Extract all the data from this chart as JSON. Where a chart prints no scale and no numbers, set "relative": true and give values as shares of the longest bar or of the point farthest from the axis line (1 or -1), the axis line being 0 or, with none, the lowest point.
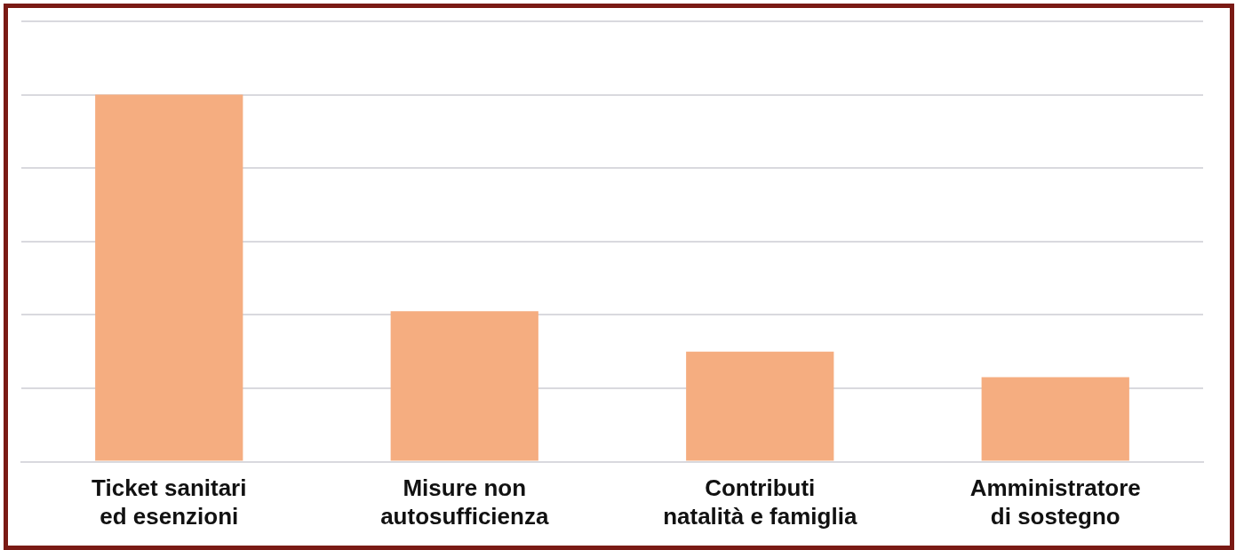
{
  "chart_data": {
    "type": "bar",
    "relative": true,
    "grid": "y",
    "categories": [
      "Ticket sanitari ed esenzioni",
      "Misure non autosufficienza",
      "Contributi natalità e famiglia",
      "Amministratore di sostegno"
    ],
    "values": [
      1,
      0.41,
      0.3,
      0.23
    ],
    "color": "#f5ad80"
  }
}
